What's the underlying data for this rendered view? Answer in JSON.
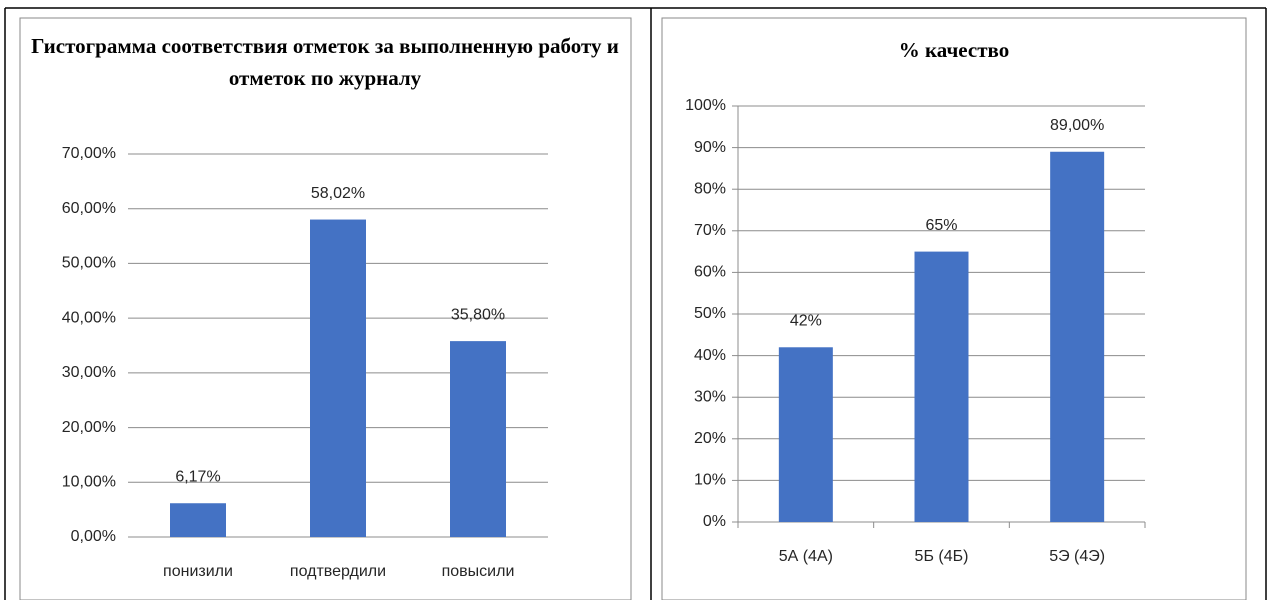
{
  "chart_data": [
    {
      "type": "bar",
      "title": "Гистограмма соответствия отметок за выполненную работу и отметок по журналу",
      "categories": [
        "понизили",
        "подтвердили",
        "повысили"
      ],
      "values": [
        6.17,
        58.02,
        35.8
      ],
      "value_labels": [
        "6,17%",
        "58,02%",
        "35,80%"
      ],
      "color": "#4472c4",
      "ylim": [
        0,
        70
      ],
      "yticks": [
        {
          "value": 0,
          "label": "0,00%"
        },
        {
          "value": 10,
          "label": "10,00%"
        },
        {
          "value": 20,
          "label": "20,00%"
        },
        {
          "value": 30,
          "label": "30,00%"
        },
        {
          "value": 40,
          "label": "40,00%"
        },
        {
          "value": 50,
          "label": "50,00%"
        },
        {
          "value": 60,
          "label": "60,00%"
        },
        {
          "value": 70,
          "label": "70,00%"
        }
      ],
      "grid": true
    },
    {
      "type": "bar",
      "title": "% качество",
      "categories": [
        "5А (4А)",
        "5Б (4Б)",
        "5Э (4Э)"
      ],
      "values": [
        42,
        65,
        89
      ],
      "value_labels": [
        "42%",
        "65%",
        "89,00%"
      ],
      "color": "#4472c4",
      "ylim": [
        0,
        100
      ],
      "yticks": [
        {
          "value": 0,
          "label": "0%"
        },
        {
          "value": 10,
          "label": "10%"
        },
        {
          "value": 20,
          "label": "20%"
        },
        {
          "value": 30,
          "label": "30%"
        },
        {
          "value": 40,
          "label": "40%"
        },
        {
          "value": 50,
          "label": "50%"
        },
        {
          "value": 60,
          "label": "60%"
        },
        {
          "value": 70,
          "label": "70%"
        },
        {
          "value": 80,
          "label": "80%"
        },
        {
          "value": 90,
          "label": "90%"
        },
        {
          "value": 100,
          "label": "100%"
        }
      ],
      "grid": true
    }
  ]
}
